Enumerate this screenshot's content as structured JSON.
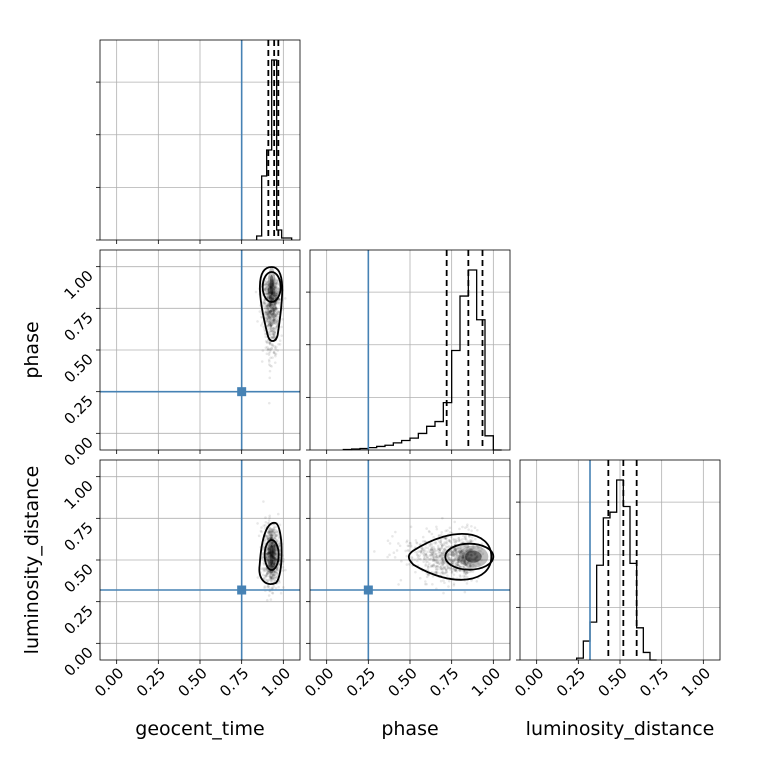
{
  "chart_data": {
    "type": "corner",
    "parameters": [
      "geocent_time",
      "phase",
      "luminosity_distance"
    ],
    "axis_range": [
      -0.1,
      1.1
    ],
    "tick_values": [
      0.0,
      0.25,
      0.5,
      0.75,
      1.0
    ],
    "tick_labels": [
      "0.00",
      "0.25",
      "0.50",
      "0.75",
      "1.00"
    ],
    "grid": true,
    "truths": {
      "geocent_time": 0.75,
      "phase": 0.25,
      "luminosity_distance": 0.32
    },
    "quantiles": {
      "geocent_time": [
        0.91,
        0.945,
        0.97
      ],
      "phase": [
        0.72,
        0.85,
        0.935
      ],
      "luminosity_distance": [
        0.43,
        0.52,
        0.6
      ]
    },
    "histograms": {
      "geocent_time": {
        "bin_edges": [
          0.84,
          0.87,
          0.9,
          0.93,
          0.96,
          0.99,
          1.05
        ],
        "counts": [
          0.02,
          0.32,
          0.45,
          0.9,
          0.05,
          0.01
        ]
      },
      "phase": {
        "bin_edges": [
          0.1,
          0.15,
          0.2,
          0.25,
          0.3,
          0.35,
          0.4,
          0.45,
          0.5,
          0.55,
          0.6,
          0.65,
          0.7,
          0.75,
          0.8,
          0.85,
          0.9,
          0.95,
          1.0,
          1.05
        ],
        "counts": [
          0.002,
          0.004,
          0.006,
          0.01,
          0.015,
          0.02,
          0.03,
          0.04,
          0.05,
          0.07,
          0.1,
          0.12,
          0.2,
          0.42,
          0.65,
          0.76,
          0.55,
          0.06,
          0.0
        ]
      },
      "luminosity_distance": {
        "bin_edges": [
          0.24,
          0.28,
          0.32,
          0.36,
          0.4,
          0.44,
          0.48,
          0.52,
          0.56,
          0.6,
          0.64,
          0.68,
          0.72
        ],
        "counts": [
          0.01,
          0.1,
          0.2,
          0.5,
          0.75,
          0.78,
          0.95,
          0.81,
          0.51,
          0.17,
          0.04,
          0.0
        ]
      }
    },
    "joint_peaks": {
      "phase|geocent_time": [
        0.93,
        0.89
      ],
      "luminosity_distance|geocent_time": [
        0.93,
        0.53
      ],
      "luminosity_distance|phase": [
        0.88,
        0.52
      ]
    }
  }
}
